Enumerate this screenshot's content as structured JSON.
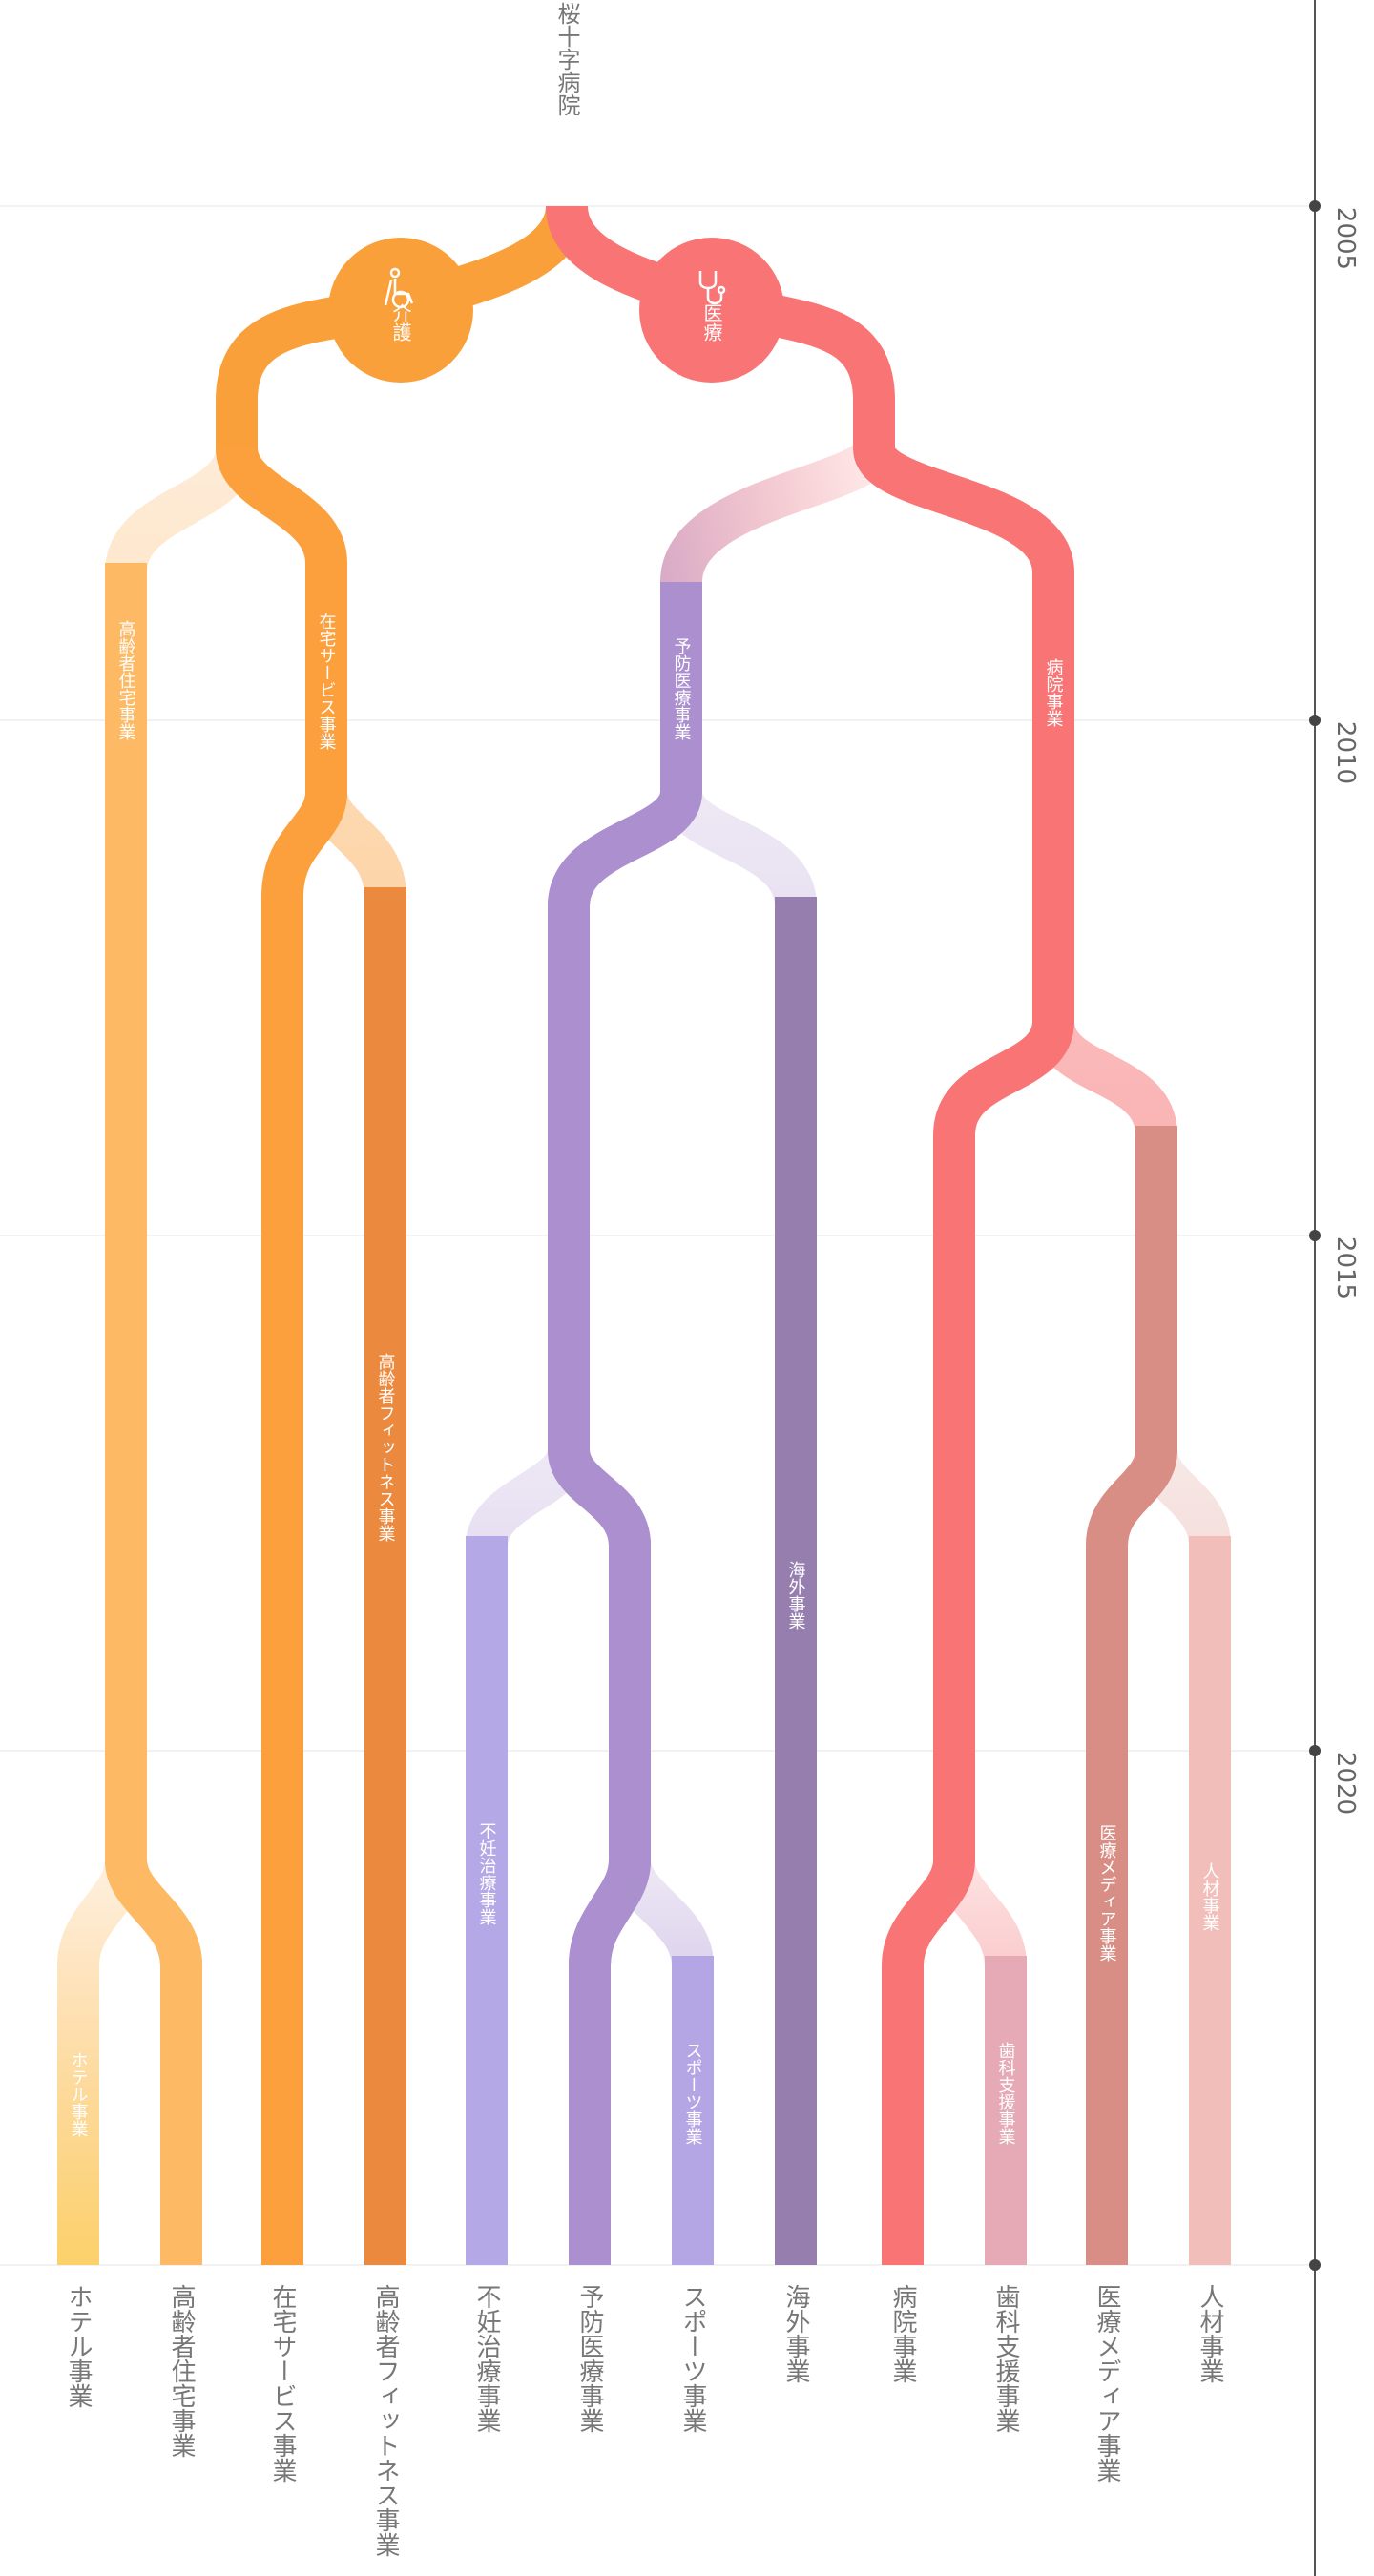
{
  "root": {
    "label": "桜十字病院"
  },
  "timeline": {
    "years": [
      "2005",
      "2010",
      "2015",
      "2020"
    ]
  },
  "nodes": {
    "care": {
      "label": "介護",
      "icon": "wheelchair-care-icon",
      "color": "#F9A03A"
    },
    "medical": {
      "label": "医療",
      "icon": "stethoscope-icon",
      "color": "#F87475"
    }
  },
  "colors": {
    "care": "#F9A03A",
    "elderly_housing": "#FDB963",
    "home_service": "#FBA03C",
    "fitness": "#EB8A3E",
    "hotel": "#FBD16A",
    "prevention": "#AB8FCE",
    "overseas": "#967FAF",
    "infertility": "#B5A8E6",
    "sports": "#B4A6E5",
    "hospital": "#F87475",
    "dental": "#E5AAB5",
    "media": "#D88E84",
    "hr": "#F2BEB9"
  },
  "branch_labels": {
    "elderly_housing": "高齢者住宅事業",
    "home_service": "在宅サービス事業",
    "fitness": "高齢者フィットネス事業",
    "hotel": "ホテル事業",
    "prevention": "予防医療事業",
    "overseas": "海外事業",
    "infertility": "不妊治療事業",
    "sports": "スポーツ事業",
    "hospital": "病院事業",
    "dental": "歯科支援事業",
    "media": "医療メディア事業",
    "hr": "人材事業"
  },
  "bottom_labels": [
    "ホテル事業",
    "高齢者住宅事業",
    "在宅サービス事業",
    "高齢者フィットネス事業",
    "不妊治療事業",
    "予防医療事業",
    "スポーツ事業",
    "海外事業",
    "病院事業",
    "歯科支援事業",
    "医療メディア事業",
    "人材事業"
  ]
}
